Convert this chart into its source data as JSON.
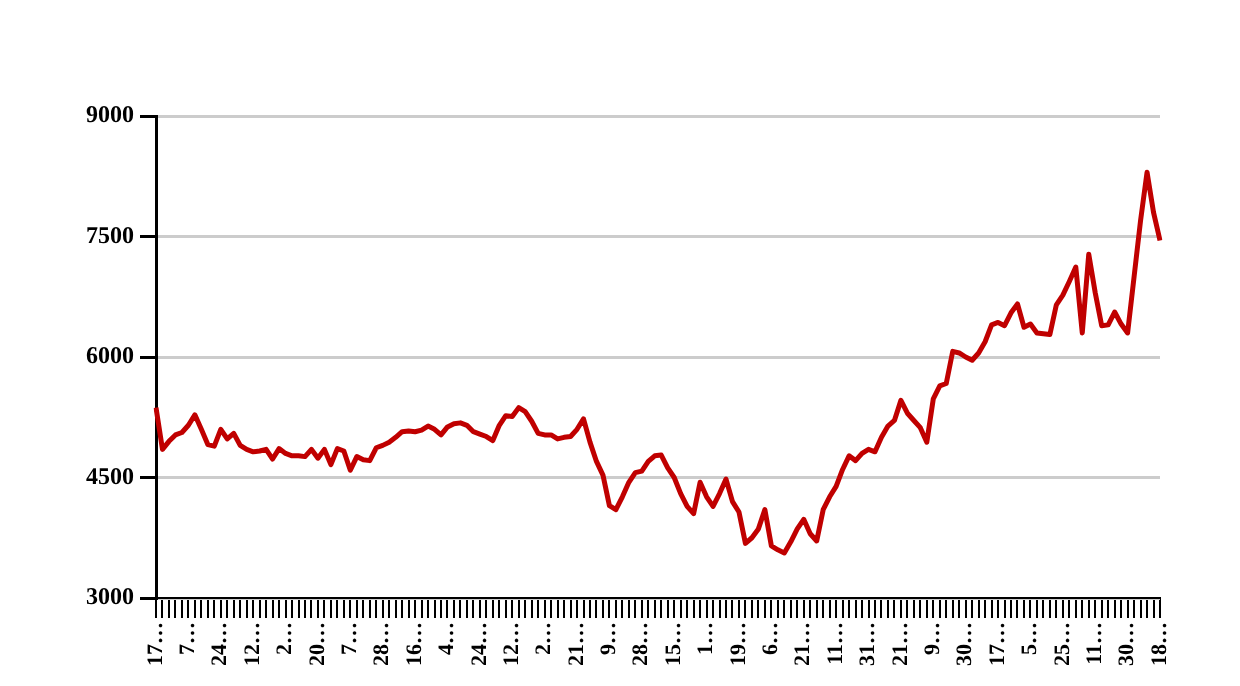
{
  "chart_data": {
    "type": "line",
    "categories": [
      "17…",
      null,
      null,
      null,
      null,
      "7…",
      null,
      null,
      null,
      null,
      "24…",
      null,
      null,
      null,
      null,
      "12…",
      null,
      null,
      null,
      null,
      "2…",
      null,
      null,
      null,
      null,
      "20…",
      null,
      null,
      null,
      null,
      "7…",
      null,
      null,
      null,
      null,
      "28…",
      null,
      null,
      null,
      null,
      "16…",
      null,
      null,
      null,
      null,
      "4…",
      null,
      null,
      null,
      null,
      "24…",
      null,
      null,
      null,
      null,
      "12…",
      null,
      null,
      null,
      null,
      "2…",
      null,
      null,
      null,
      null,
      "21…",
      null,
      null,
      null,
      null,
      "9…",
      null,
      null,
      null,
      null,
      "28…",
      null,
      null,
      null,
      null,
      "15…",
      null,
      null,
      null,
      null,
      "1…",
      null,
      null,
      null,
      null,
      "19…",
      null,
      null,
      null,
      null,
      "6…",
      null,
      null,
      null,
      null,
      "21…",
      null,
      null,
      null,
      null,
      "11…",
      null,
      null,
      null,
      null,
      "31…",
      null,
      null,
      null,
      null,
      "21…",
      null,
      null,
      null,
      null,
      "9…",
      null,
      null,
      null,
      null,
      "30…",
      null,
      null,
      null,
      null,
      "17…",
      null,
      null,
      null,
      null,
      "5…",
      null,
      null,
      null,
      null,
      "25…",
      null,
      null,
      null,
      null,
      "11…",
      null,
      null,
      null,
      null,
      "30…",
      null,
      null,
      null,
      null,
      "18…"
    ],
    "series": [
      {
        "color": "#c00000",
        "values": [
          5370,
          4850,
          4950,
          5030,
          5060,
          5150,
          5280,
          5100,
          4910,
          4890,
          5100,
          4980,
          5050,
          4900,
          4850,
          4820,
          4830,
          4850,
          4730,
          4860,
          4800,
          4770,
          4770,
          4760,
          4850,
          4740,
          4850,
          4660,
          4860,
          4830,
          4590,
          4760,
          4720,
          4710,
          4870,
          4900,
          4940,
          5000,
          5070,
          5080,
          5070,
          5090,
          5140,
          5100,
          5030,
          5130,
          5170,
          5180,
          5150,
          5070,
          5040,
          5010,
          4960,
          5150,
          5270,
          5260,
          5370,
          5320,
          5200,
          5050,
          5030,
          5030,
          4980,
          5000,
          5010,
          5100,
          5230,
          4940,
          4700,
          4530,
          4150,
          4100,
          4260,
          4440,
          4560,
          4580,
          4700,
          4770,
          4780,
          4620,
          4500,
          4300,
          4140,
          4050,
          4440,
          4260,
          4140,
          4300,
          4480,
          4200,
          4070,
          3680,
          3750,
          3860,
          4100,
          3650,
          3600,
          3560,
          3700,
          3860,
          3980,
          3800,
          3710,
          4100,
          4260,
          4390,
          4600,
          4770,
          4710,
          4800,
          4850,
          4820,
          5000,
          5140,
          5210,
          5460,
          5300,
          5210,
          5120,
          4940,
          5480,
          5640,
          5670,
          6070,
          6050,
          6000,
          5960,
          6050,
          6190,
          6400,
          6430,
          6390,
          6550,
          6660,
          6370,
          6410,
          6300,
          6290,
          6280,
          6650,
          6770,
          6940,
          7120,
          6300,
          7280,
          6800,
          6390,
          6400,
          6560,
          6410,
          6300,
          7000,
          7700,
          8300,
          7800,
          7450
        ]
      }
    ],
    "ylim": [
      3000,
      9000
    ],
    "yticks": [
      3000,
      4500,
      6000,
      7500,
      9000
    ],
    "grid": "y",
    "legend": false,
    "marker": "none",
    "line_style": "solid"
  }
}
